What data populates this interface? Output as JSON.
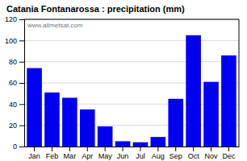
{
  "chart_data": {
    "type": "bar",
    "title": "Catania Fontanarossa : precipitation (mm)",
    "categories": [
      "Jan",
      "Feb",
      "Mar",
      "Apr",
      "May",
      "Jun",
      "Jul",
      "Aug",
      "Sep",
      "Oct",
      "Nov",
      "Dec"
    ],
    "values": [
      74,
      51,
      46,
      35,
      19,
      5,
      4,
      9,
      45,
      105,
      61,
      86
    ],
    "color": "#0000EE",
    "ylim": [
      0,
      120
    ],
    "yticks": [
      0,
      20,
      40,
      60,
      80,
      100,
      120
    ],
    "grid": true,
    "annotations": [
      "www.allmetsat.com"
    ]
  }
}
